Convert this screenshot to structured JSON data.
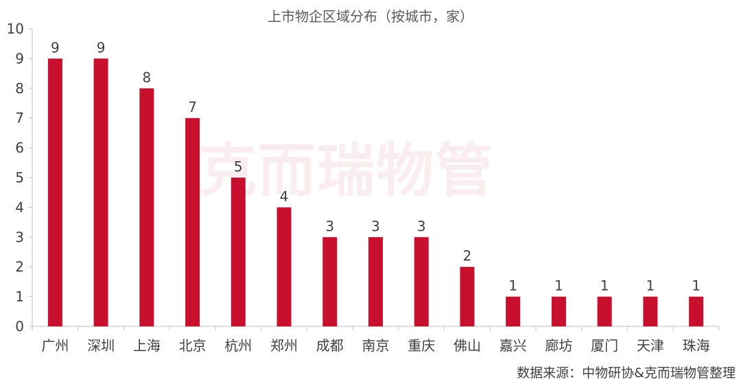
{
  "chart_data": {
    "type": "bar",
    "title": "上市物企区域分布（按城市，家）",
    "categories": [
      "广州",
      "深圳",
      "上海",
      "北京",
      "杭州",
      "郑州",
      "成都",
      "南京",
      "重庆",
      "佛山",
      "嘉兴",
      "廊坊",
      "厦门",
      "天津",
      "珠海"
    ],
    "values": [
      9,
      9,
      8,
      7,
      5,
      4,
      3,
      3,
      3,
      2,
      1,
      1,
      1,
      1,
      1
    ],
    "ylim": [
      0,
      10
    ],
    "yticks": [
      "0",
      "1",
      "2",
      "3",
      "4",
      "5",
      "6",
      "7",
      "8",
      "9",
      "10"
    ],
    "grid": false,
    "legend": "none",
    "bar_color": "#c8102e",
    "source": "数据来源：中物研协&克而瑞物管整理",
    "watermark": "克而瑞物管"
  }
}
